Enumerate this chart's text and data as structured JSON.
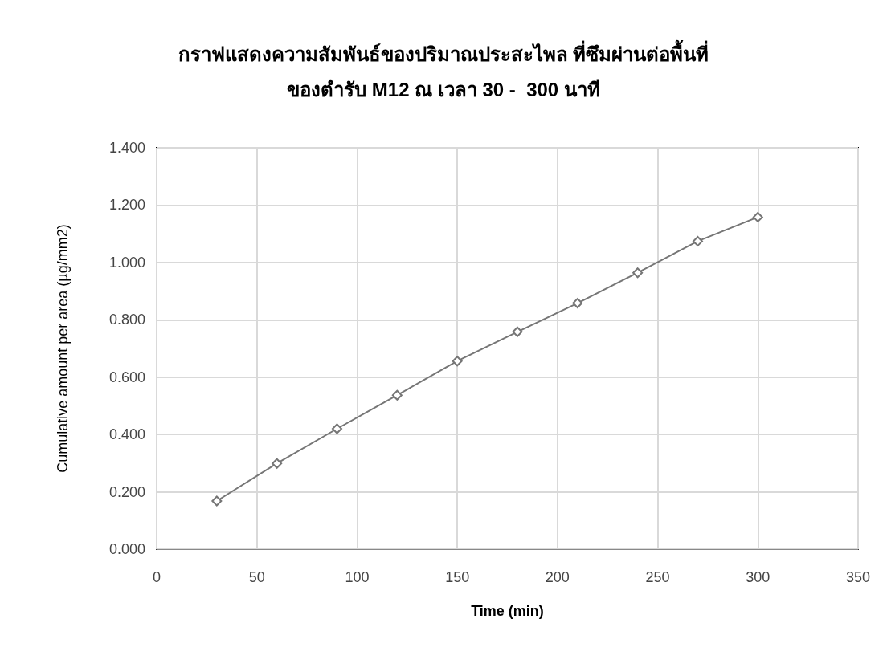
{
  "chart_data": {
    "type": "line",
    "title": "กราฟแสดงความสัมพันธ์ของปริมาณประสะไพล ที่ซึมผ่านต่อพื้นที่\nของตำรับ M12 ณ เวลา 30 -  300 นาที",
    "xlabel": "Time (min)",
    "ylabel": "Cumulative amount per area (µg/mm2)",
    "x": [
      30,
      60,
      90,
      120,
      150,
      180,
      210,
      240,
      270,
      300
    ],
    "series": [
      {
        "color": "#767676",
        "values": [
          0.168,
          0.299,
          0.42,
          0.537,
          0.656,
          0.758,
          0.858,
          0.964,
          1.074,
          1.158
        ]
      }
    ],
    "xlim": [
      0,
      350
    ],
    "xticks": [
      0,
      50,
      100,
      150,
      200,
      250,
      300,
      350
    ],
    "ylim": [
      0,
      1.4
    ],
    "yticks": [
      {
        "value": 0,
        "label": "0.000"
      },
      {
        "value": 0.2,
        "label": "0.200"
      },
      {
        "value": 0.4,
        "label": "0.400"
      },
      {
        "value": 0.6,
        "label": "0.600"
      },
      {
        "value": 0.8,
        "label": "0.800"
      },
      {
        "value": 1.0,
        "label": "1.000"
      },
      {
        "value": 1.2,
        "label": "1.200"
      },
      {
        "value": 1.4,
        "label": "1.400"
      }
    ],
    "grid": true,
    "marker": "diamond",
    "line_style": "solid"
  }
}
